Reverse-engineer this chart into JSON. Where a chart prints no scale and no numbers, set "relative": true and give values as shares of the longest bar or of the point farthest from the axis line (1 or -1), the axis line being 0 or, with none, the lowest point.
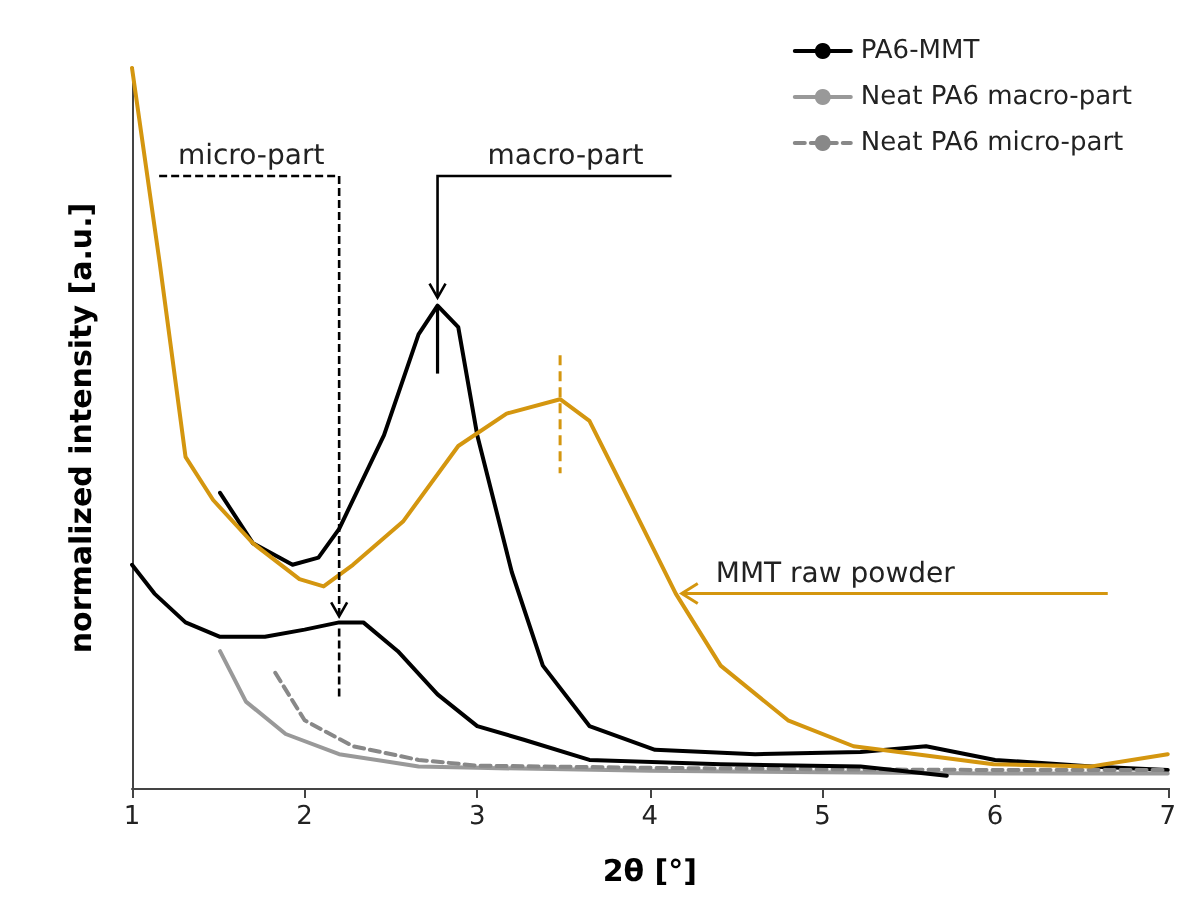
{
  "chart_data": {
    "type": "line",
    "relative": true,
    "xlabel": "2θ [°]",
    "ylabel": "normalized intensity [a.u.]",
    "xlim": [
      1,
      7
    ],
    "xticks": [
      1,
      2,
      3,
      4,
      5,
      6,
      7
    ],
    "tick_labels": "x",
    "grid": false,
    "legend": "top right",
    "marker": "none",
    "series": [
      {
        "name": "PA6-MMT",
        "color": "#000000",
        "line_style": "solid",
        "x": [
          1.51,
          1.7,
          1.93,
          2.08,
          2.2,
          2.46,
          2.66,
          2.77,
          2.89,
          3.0,
          3.2,
          3.38,
          3.65,
          4.03,
          4.61,
          5.22,
          5.6,
          6.0,
          6.56,
          7.0
        ],
        "values": [
          0.41,
          0.34,
          0.31,
          0.32,
          0.36,
          0.49,
          0.63,
          0.67,
          0.64,
          0.49,
          0.3,
          0.17,
          0.086,
          0.053,
          0.047,
          0.05,
          0.058,
          0.039,
          0.03,
          0.025
        ]
      },
      {
        "name": "Neat PA6 macro-part",
        "color": "#999999",
        "line_style": "solid",
        "x": [
          1.51,
          1.66,
          1.89,
          2.2,
          2.66,
          3.0,
          4.0,
          5.0,
          6.0,
          7.0
        ],
        "values": [
          0.19,
          0.12,
          0.075,
          0.047,
          0.03,
          0.028,
          0.024,
          0.022,
          0.02,
          0.02
        ]
      },
      {
        "name": "Neat PA6 micro-part",
        "color": "#888888",
        "line_style": "dashed",
        "x": [
          1.83,
          2.0,
          2.28,
          2.66,
          3.0,
          4.0,
          5.0,
          6.0,
          7.0
        ],
        "values": [
          0.16,
          0.094,
          0.058,
          0.039,
          0.031,
          0.028,
          0.026,
          0.025,
          0.025
        ]
      },
      {
        "color": "#000000",
        "line_style": "solid",
        "x": [
          1.0,
          1.13,
          1.31,
          1.51,
          1.77,
          2.0,
          2.2,
          2.34,
          2.54,
          2.77,
          3.0,
          3.27,
          3.65,
          4.41,
          5.22,
          5.72
        ],
        "values": [
          0.31,
          0.27,
          0.23,
          0.21,
          0.21,
          0.22,
          0.23,
          0.23,
          0.19,
          0.13,
          0.086,
          0.067,
          0.039,
          0.033,
          0.03,
          0.017
        ]
      },
      {
        "color": "#d4960f",
        "line_style": "solid",
        "x": [
          1.0,
          1.16,
          1.31,
          1.47,
          1.7,
          1.97,
          2.11,
          2.28,
          2.57,
          2.89,
          3.17,
          3.48,
          3.65,
          3.88,
          4.15,
          4.41,
          4.8,
          5.18,
          5.6,
          5.99,
          6.56,
          7.0
        ],
        "values": [
          1.0,
          0.73,
          0.46,
          0.4,
          0.34,
          0.29,
          0.28,
          0.31,
          0.37,
          0.475,
          0.52,
          0.54,
          0.51,
          0.4,
          0.27,
          0.17,
          0.094,
          0.058,
          0.045,
          0.033,
          0.03,
          0.047
        ]
      }
    ],
    "annotations": [
      {
        "text": "micro-part",
        "x": 2.2,
        "y": 0.23
      },
      {
        "text": "macro-part",
        "x": 2.77,
        "y": 0.67
      },
      {
        "text": "MMT raw powder",
        "x": 4.15,
        "y": 0.27
      }
    ]
  }
}
